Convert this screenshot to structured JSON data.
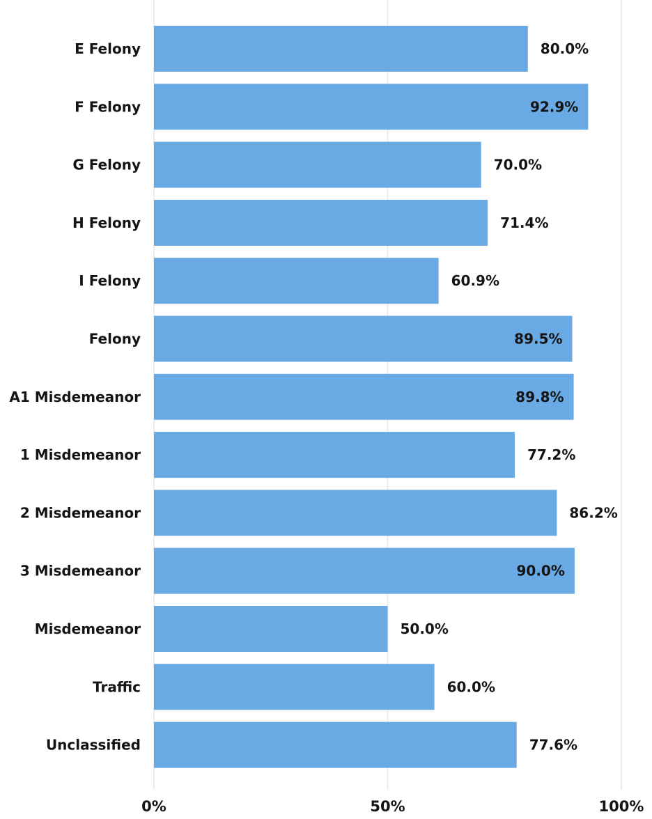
{
  "chart_data": {
    "type": "bar",
    "orientation": "horizontal",
    "categories": [
      "E Felony",
      "F Felony",
      "G Felony",
      "H Felony",
      "I Felony",
      "Felony",
      "A1 Misdemeanor",
      "1 Misdemeanor",
      "2 Misdemeanor",
      "3 Misdemeanor",
      "Misdemeanor",
      "Traffic",
      "Unclassified"
    ],
    "values": [
      80.0,
      92.9,
      70.0,
      71.4,
      60.9,
      89.5,
      89.8,
      77.2,
      86.2,
      90.0,
      50.0,
      60.0,
      77.6
    ],
    "data_labels": [
      "80.0%",
      "92.9%",
      "70.0%",
      "71.4%",
      "60.9%",
      "89.5%",
      "89.8%",
      "77.2%",
      "86.2%",
      "90.0%",
      "50.0%",
      "60.0%",
      "77.6%"
    ],
    "x_ticks": [
      0,
      50,
      100
    ],
    "x_tick_labels": [
      "0%",
      "50%",
      "100%"
    ],
    "xlim": [
      0,
      100
    ],
    "grid": true,
    "title": "",
    "xlabel": "",
    "ylabel": "",
    "bar_color": "#69a9e4",
    "text_color": "#141414",
    "grid_color": "#e7e7e7"
  }
}
